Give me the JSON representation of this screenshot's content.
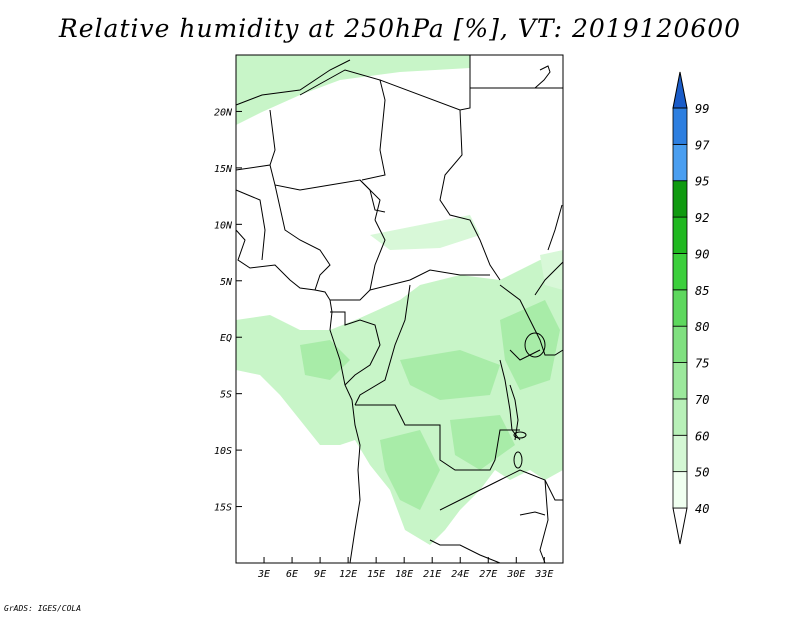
{
  "title": "Relative humidity at 250hPa [%], VT: 2019120600",
  "credit": "GrADS: IGES/COLA",
  "map": {
    "projection": "latlon",
    "lon_range": [
      0,
      35
    ],
    "lat_range": [
      -20,
      25
    ],
    "lat_ticks": [
      {
        "value": 20,
        "label": "20N"
      },
      {
        "value": 15,
        "label": "15N"
      },
      {
        "value": 10,
        "label": "10N"
      },
      {
        "value": 5,
        "label": "5N"
      },
      {
        "value": 0,
        "label": "EQ"
      },
      {
        "value": -5,
        "label": "5S"
      },
      {
        "value": -10,
        "label": "10S"
      },
      {
        "value": -15,
        "label": "15S"
      }
    ],
    "lon_ticks": [
      {
        "value": 3,
        "label": "3E"
      },
      {
        "value": 6,
        "label": "6E"
      },
      {
        "value": 9,
        "label": "9E"
      },
      {
        "value": 12,
        "label": "12E"
      },
      {
        "value": 15,
        "label": "15E"
      },
      {
        "value": 18,
        "label": "18E"
      },
      {
        "value": 21,
        "label": "21E"
      },
      {
        "value": 24,
        "label": "24E"
      },
      {
        "value": 27,
        "label": "27E"
      },
      {
        "value": 30,
        "label": "30E"
      },
      {
        "value": 33,
        "label": "33E"
      }
    ]
  },
  "colorbar": {
    "levels": [
      "40",
      "50",
      "60",
      "70",
      "75",
      "80",
      "85",
      "90",
      "92",
      "95",
      "97",
      "99"
    ],
    "colors": [
      "#f0fff0",
      "#d4f7d4",
      "#b8f0b8",
      "#9ce89c",
      "#80e080",
      "#5ed85e",
      "#3ccf3c",
      "#20b820",
      "#109a10",
      "#4a9ef0",
      "#2d7fe0",
      "#1a5cc8"
    ]
  },
  "colors": {
    "land_outline": "#000000",
    "humid_light": "#c8f5c8",
    "humid_mid": "#a8eca8"
  }
}
